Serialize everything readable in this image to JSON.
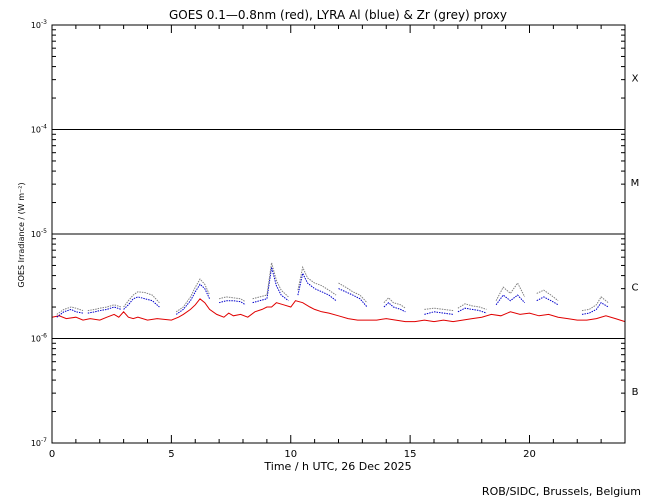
{
  "chart_data": {
    "type": "line",
    "title": "GOES 0.1—0.8nm (red), LYRA Al (blue) & Zr (grey) proxy",
    "xlabel": "Time / h UTC, 26 Dec 2025",
    "ylabel": "GOES Irradiance / (W m⁻²)",
    "xlim": [
      0,
      24
    ],
    "ylim": [
      1e-07,
      0.001
    ],
    "yscale": "log",
    "x_ticks": [
      0,
      5,
      10,
      15,
      20
    ],
    "y_ticks": [
      {
        "value": 1e-07,
        "base": "10",
        "exp": "-7"
      },
      {
        "value": 1e-06,
        "base": "10",
        "exp": "-6"
      },
      {
        "value": 1e-05,
        "base": "10",
        "exp": "-5"
      },
      {
        "value": 0.0001,
        "base": "10",
        "exp": "-4"
      },
      {
        "value": 0.001,
        "base": "10",
        "exp": "-3"
      }
    ],
    "class_lines": [
      1e-06,
      1e-05,
      0.0001
    ],
    "flare_classes": [
      {
        "label": "X",
        "value": 0.000316
      },
      {
        "label": "M",
        "value": 3.16e-05
      },
      {
        "label": "C",
        "value": 3.16e-06
      },
      {
        "label": "B",
        "value": 3.16e-07
      }
    ],
    "footer": "ROB/SIDC, Brussels, Belgium",
    "colors": {
      "goes": "#e00000",
      "al": "#0000cc",
      "zr": "#808080",
      "axis": "#000000"
    },
    "series": [
      {
        "color": "#e00000",
        "x": [
          0.0,
          0.3,
          0.6,
          1.0,
          1.3,
          1.6,
          2.0,
          2.3,
          2.6,
          2.8,
          3.0,
          3.2,
          3.4,
          3.6,
          4.0,
          4.4,
          5.0,
          5.3,
          5.5,
          5.8,
          6.0,
          6.2,
          6.4,
          6.6,
          6.9,
          7.2,
          7.4,
          7.6,
          7.9,
          8.2,
          8.5,
          8.8,
          9.0,
          9.2,
          9.4,
          9.7,
          10.0,
          10.2,
          10.5,
          10.8,
          11.0,
          11.3,
          11.6,
          12.0,
          12.4,
          12.8,
          13.2,
          13.6,
          14.0,
          14.4,
          14.8,
          15.2,
          15.6,
          16.0,
          16.4,
          16.8,
          17.2,
          17.6,
          18.0,
          18.4,
          18.8,
          19.2,
          19.6,
          20.0,
          20.4,
          20.8,
          21.2,
          21.6,
          22.0,
          22.4,
          22.8,
          23.2,
          23.6,
          24.0
        ],
        "y": [
          1.6e-06,
          1.65e-06,
          1.55e-06,
          1.6e-06,
          1.5e-06,
          1.55e-06,
          1.5e-06,
          1.6e-06,
          1.7e-06,
          1.6e-06,
          1.8e-06,
          1.6e-06,
          1.55e-06,
          1.6e-06,
          1.5e-06,
          1.55e-06,
          1.5e-06,
          1.6e-06,
          1.7e-06,
          1.9e-06,
          2.1e-06,
          2.4e-06,
          2.2e-06,
          1.9e-06,
          1.7e-06,
          1.6e-06,
          1.75e-06,
          1.65e-06,
          1.7e-06,
          1.6e-06,
          1.8e-06,
          1.9e-06,
          2e-06,
          2e-06,
          2.2e-06,
          2.1e-06,
          2e-06,
          2.3e-06,
          2.2e-06,
          2e-06,
          1.9e-06,
          1.8e-06,
          1.75e-06,
          1.65e-06,
          1.55e-06,
          1.5e-06,
          1.5e-06,
          1.5e-06,
          1.55e-06,
          1.5e-06,
          1.45e-06,
          1.45e-06,
          1.5e-06,
          1.45e-06,
          1.5e-06,
          1.45e-06,
          1.5e-06,
          1.55e-06,
          1.6e-06,
          1.7e-06,
          1.65e-06,
          1.8e-06,
          1.7e-06,
          1.75e-06,
          1.65e-06,
          1.7e-06,
          1.6e-06,
          1.55e-06,
          1.5e-06,
          1.5e-06,
          1.55e-06,
          1.65e-06,
          1.55e-06,
          1.45e-06
        ]
      },
      {
        "color": "#0000cc",
        "segments": [
          {
            "x": [
              0.2,
              0.5,
              0.8,
              1.0,
              1.3
            ],
            "y": [
              1.6e-06,
              1.8e-06,
              1.9e-06,
              1.8e-06,
              1.75e-06
            ]
          },
          {
            "x": [
              1.5,
              1.8,
              2.0,
              2.3,
              2.6,
              2.9
            ],
            "y": [
              1.75e-06,
              1.8e-06,
              1.85e-06,
              1.9e-06,
              2e-06,
              1.9e-06
            ]
          },
          {
            "x": [
              3.0,
              3.2,
              3.4,
              3.6,
              3.9,
              4.2,
              4.5
            ],
            "y": [
              1.9e-06,
              2.1e-06,
              2.4e-06,
              2.5e-06,
              2.4e-06,
              2.3e-06,
              2e-06
            ]
          },
          {
            "x": [
              5.2,
              5.5,
              5.8,
              6.0,
              6.2,
              6.4,
              6.6
            ],
            "y": [
              1.7e-06,
              1.9e-06,
              2.3e-06,
              2.8e-06,
              3.3e-06,
              3e-06,
              2.4e-06
            ]
          },
          {
            "x": [
              7.0,
              7.3,
              7.6,
              7.9,
              8.1
            ],
            "y": [
              2.2e-06,
              2.3e-06,
              2.3e-06,
              2.25e-06,
              2.1e-06
            ]
          },
          {
            "x": [
              8.4,
              8.7,
              9.0,
              9.2,
              9.4,
              9.6,
              9.9
            ],
            "y": [
              2.2e-06,
              2.3e-06,
              2.4e-06,
              4.8e-06,
              3.2e-06,
              2.6e-06,
              2.3e-06
            ]
          },
          {
            "x": [
              10.3,
              10.5,
              10.7,
              11.0,
              11.3,
              11.6,
              11.9
            ],
            "y": [
              2.6e-06,
              4.2e-06,
              3.4e-06,
              3e-06,
              2.8e-06,
              2.6e-06,
              2.3e-06
            ]
          },
          {
            "x": [
              12.0,
              12.3,
              12.6,
              12.9,
              13.2
            ],
            "y": [
              3e-06,
              2.8e-06,
              2.6e-06,
              2.4e-06,
              2e-06
            ]
          },
          {
            "x": [
              13.9,
              14.1,
              14.3,
              14.6,
              14.8
            ],
            "y": [
              2e-06,
              2.2e-06,
              2e-06,
              1.9e-06,
              1.8e-06
            ]
          },
          {
            "x": [
              15.6,
              16.0,
              16.4,
              16.8
            ],
            "y": [
              1.7e-06,
              1.8e-06,
              1.75e-06,
              1.7e-06
            ]
          },
          {
            "x": [
              17.0,
              17.3,
              17.6,
              17.9,
              18.2
            ],
            "y": [
              1.8e-06,
              1.95e-06,
              1.9e-06,
              1.85e-06,
              1.75e-06
            ]
          },
          {
            "x": [
              18.6,
              18.9,
              19.2,
              19.5,
              19.8
            ],
            "y": [
              2.1e-06,
              2.6e-06,
              2.3e-06,
              2.6e-06,
              2.2e-06
            ]
          },
          {
            "x": [
              20.3,
              20.6,
              20.9,
              21.2
            ],
            "y": [
              2.3e-06,
              2.5e-06,
              2.3e-06,
              2.1e-06
            ]
          },
          {
            "x": [
              22.2,
              22.5,
              22.8,
              23.0,
              23.3
            ],
            "y": [
              1.7e-06,
              1.75e-06,
              1.9e-06,
              2.2e-06,
              2e-06
            ]
          }
        ]
      },
      {
        "color": "#808080",
        "segments": [
          {
            "x": [
              0.2,
              0.5,
              0.8,
              1.0,
              1.3
            ],
            "y": [
              1.7e-06,
              1.9e-06,
              2e-06,
              1.95e-06,
              1.85e-06
            ]
          },
          {
            "x": [
              1.5,
              1.8,
              2.0,
              2.3,
              2.6,
              2.9
            ],
            "y": [
              1.85e-06,
              1.9e-06,
              1.95e-06,
              2e-06,
              2.1e-06,
              2e-06
            ]
          },
          {
            "x": [
              3.0,
              3.2,
              3.4,
              3.6,
              3.9,
              4.2,
              4.5
            ],
            "y": [
              2e-06,
              2.3e-06,
              2.6e-06,
              2.8e-06,
              2.75e-06,
              2.6e-06,
              2.2e-06
            ]
          },
          {
            "x": [
              5.2,
              5.5,
              5.8,
              6.0,
              6.2,
              6.4,
              6.6
            ],
            "y": [
              1.8e-06,
              2e-06,
              2.5e-06,
              3.1e-06,
              3.7e-06,
              3.3e-06,
              2.6e-06
            ]
          },
          {
            "x": [
              7.0,
              7.3,
              7.6,
              7.9,
              8.1
            ],
            "y": [
              2.4e-06,
              2.5e-06,
              2.45e-06,
              2.4e-06,
              2.25e-06
            ]
          },
          {
            "x": [
              8.4,
              8.7,
              9.0,
              9.2,
              9.4,
              9.6,
              9.9
            ],
            "y": [
              2.4e-06,
              2.5e-06,
              2.6e-06,
              5.3e-06,
              3.6e-06,
              2.9e-06,
              2.5e-06
            ]
          },
          {
            "x": [
              10.3,
              10.5,
              10.7,
              11.0,
              11.3,
              11.6,
              11.9
            ],
            "y": [
              2.9e-06,
              4.8e-06,
              3.8e-06,
              3.4e-06,
              3.2e-06,
              2.9e-06,
              2.6e-06
            ]
          },
          {
            "x": [
              12.0,
              12.3,
              12.6,
              12.9,
              13.2
            ],
            "y": [
              3.4e-06,
              3.1e-06,
              2.8e-06,
              2.6e-06,
              2.2e-06
            ]
          },
          {
            "x": [
              13.9,
              14.1,
              14.3,
              14.6,
              14.8
            ],
            "y": [
              2.2e-06,
              2.45e-06,
              2.2e-06,
              2.1e-06,
              1.95e-06
            ]
          },
          {
            "x": [
              15.6,
              16.0,
              16.4,
              16.8
            ],
            "y": [
              1.9e-06,
              1.95e-06,
              1.9e-06,
              1.85e-06
            ]
          },
          {
            "x": [
              17.0,
              17.3,
              17.6,
              17.9,
              18.2
            ],
            "y": [
              1.95e-06,
              2.15e-06,
              2.05e-06,
              2e-06,
              1.9e-06
            ]
          },
          {
            "x": [
              18.6,
              18.9,
              19.2,
              19.5,
              19.8
            ],
            "y": [
              2.3e-06,
              3.1e-06,
              2.7e-06,
              3.4e-06,
              2.5e-06
            ]
          },
          {
            "x": [
              20.3,
              20.6,
              20.9,
              21.2
            ],
            "y": [
              2.7e-06,
              2.9e-06,
              2.6e-06,
              2.3e-06
            ]
          },
          {
            "x": [
              22.2,
              22.5,
              22.8,
              23.0,
              23.3
            ],
            "y": [
              1.85e-06,
              1.9e-06,
              2.1e-06,
              2.5e-06,
              2.2e-06
            ]
          }
        ]
      }
    ]
  }
}
